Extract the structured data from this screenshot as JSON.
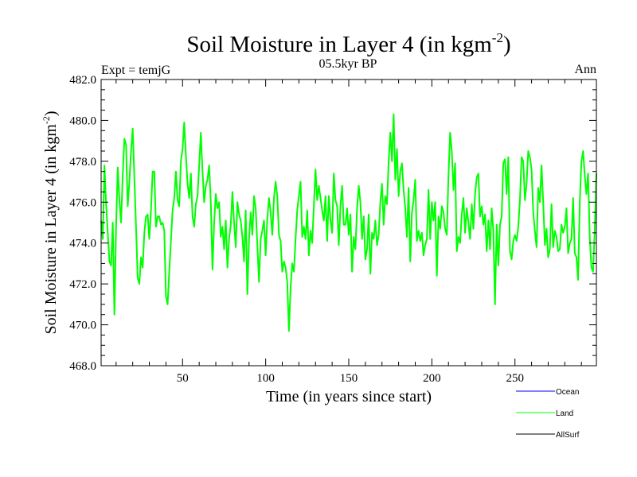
{
  "chart_data": {
    "type": "line",
    "title": "Soil Moisture in Layer 4 (in kgm",
    "title_sup": "-2",
    "title_close": ")",
    "subtitle_left": "Expt = temjG",
    "subtitle_center": "05.5kyr BP",
    "subtitle_right": "Ann",
    "xlabel": "Time (in years since start)",
    "ylabel": "Soil Moisture in Layer 4 (in kgm",
    "ylabel_sup": "-2",
    "ylabel_close": ")",
    "xlim": [
      1,
      299
    ],
    "ylim": [
      468.0,
      482.0
    ],
    "xticks": [
      50,
      100,
      150,
      200,
      250
    ],
    "xtick_labels": [
      "50",
      "100",
      "150",
      "200",
      "250"
    ],
    "yticks": [
      468,
      470,
      472,
      474,
      476,
      478,
      480,
      482
    ],
    "ytick_labels": [
      "468.0",
      "470.0",
      "472.0",
      "474.0",
      "476.0",
      "478.0",
      "480.0",
      "482.0"
    ],
    "legend": [
      {
        "name": "Ocean",
        "color": "#0000ff"
      },
      {
        "name": "Land",
        "color": "#00ff00"
      },
      {
        "name": "AllSurf",
        "color": "#000000"
      }
    ],
    "series": [
      {
        "name": "Land",
        "color": "#00ff00",
        "x": [
          1,
          2,
          3,
          4,
          5,
          6,
          7,
          8,
          9,
          10,
          11,
          12,
          13,
          14,
          15,
          16,
          17,
          18,
          19,
          20,
          21,
          22,
          23,
          24,
          25,
          26,
          27,
          28,
          29,
          30,
          31,
          32,
          33,
          34,
          35,
          36,
          37,
          38,
          39,
          40,
          41,
          42,
          43,
          44,
          45,
          46,
          47,
          48,
          49,
          50,
          51,
          52,
          53,
          54,
          55,
          56,
          57,
          58,
          59,
          60,
          61,
          62,
          63,
          64,
          65,
          66,
          67,
          68,
          69,
          70,
          71,
          72,
          73,
          74,
          75,
          76,
          77,
          78,
          79,
          80,
          81,
          82,
          83,
          84,
          85,
          86,
          87,
          88,
          89,
          90,
          91,
          92,
          93,
          94,
          95,
          96,
          97,
          98,
          99,
          100,
          101,
          102,
          103,
          104,
          105,
          106,
          107,
          108,
          109,
          110,
          111,
          112,
          113,
          114,
          115,
          116,
          117,
          118,
          119,
          120,
          121,
          122,
          123,
          124,
          125,
          126,
          127,
          128,
          129,
          130,
          131,
          132,
          133,
          134,
          135,
          136,
          137,
          138,
          139,
          140,
          141,
          142,
          143,
          144,
          145,
          146,
          147,
          148,
          149,
          150,
          151,
          152,
          153,
          154,
          155,
          156,
          157,
          158,
          159,
          160,
          161,
          162,
          163,
          164,
          165,
          166,
          167,
          168,
          169,
          170,
          171,
          172,
          173,
          174,
          175,
          176,
          177,
          178,
          179,
          180,
          181,
          182,
          183,
          184,
          185,
          186,
          187,
          188,
          189,
          190,
          191,
          192,
          193,
          194,
          195,
          196,
          197,
          198,
          199,
          200,
          201,
          202,
          203,
          204,
          205,
          206,
          207,
          208,
          209,
          210,
          211,
          212,
          213,
          214,
          215,
          216,
          217,
          218,
          219,
          220,
          221,
          222,
          223,
          224,
          225,
          226,
          227,
          228,
          229,
          230,
          231,
          232,
          233,
          234,
          235,
          236,
          237,
          238,
          239,
          240,
          241,
          242,
          243,
          244,
          245,
          246,
          247,
          248,
          249,
          250,
          251,
          252,
          253,
          254,
          255,
          256,
          257,
          258,
          259,
          260,
          261,
          262,
          263,
          264,
          265,
          266,
          267,
          268,
          269,
          270,
          271,
          272,
          273,
          274,
          275,
          276,
          277,
          278,
          279,
          280,
          281,
          282,
          283,
          284,
          285,
          286,
          287,
          288,
          289,
          290,
          291,
          292,
          293,
          294,
          295,
          296,
          297,
          298,
          299
        ],
        "values": [
          475.1,
          474.2,
          477.8,
          475.9,
          474.5,
          473.1,
          472.9,
          475.0,
          470.5,
          474.8,
          477.7,
          476.1,
          475.0,
          477.3,
          479.1,
          478.8,
          475.8,
          477.0,
          478.5,
          479.6,
          477.2,
          474.8,
          472.3,
          472.0,
          473.3,
          472.8,
          474.5,
          475.3,
          475.4,
          474.2,
          475.6,
          477.5,
          477.5,
          474.8,
          475.3,
          475.3,
          474.9,
          475.0,
          474.6,
          471.4,
          471.0,
          472.6,
          474.1,
          475.6,
          476.2,
          477.5,
          476.1,
          475.8,
          478.0,
          478.6,
          479.9,
          478.3,
          476.9,
          476.2,
          477.4,
          475.3,
          474.8,
          475.9,
          476.3,
          477.8,
          479.4,
          477.5,
          476.0,
          476.8,
          477.1,
          477.8,
          476.0,
          472.7,
          475.0,
          476.4,
          475.7,
          476.0,
          474.3,
          474.8,
          473.7,
          475.1,
          472.8,
          474.2,
          474.9,
          476.5,
          475.0,
          473.8,
          476.0,
          475.4,
          475.1,
          474.3,
          473.1,
          475.6,
          471.5,
          474.2,
          475.5,
          474.4,
          476.3,
          475.7,
          473.9,
          472.1,
          474.2,
          474.6,
          475.1,
          473.4,
          475.2,
          476.2,
          475.5,
          474.4,
          476.2,
          477.0,
          476.3,
          474.4,
          474.1,
          472.6,
          473.1,
          472.8,
          472.1,
          469.7,
          471.8,
          473.0,
          472.6,
          474.2,
          475.6,
          476.3,
          477.0,
          474.3,
          474.8,
          474.2,
          475.6,
          473.4,
          474.6,
          474.0,
          475.8,
          477.6,
          476.1,
          476.8,
          476.2,
          475.6,
          475.1,
          476.3,
          474.1,
          476.3,
          475.1,
          474.5,
          477.4,
          476.1,
          475.8,
          473.9,
          475.8,
          476.8,
          474.9,
          474.9,
          475.7,
          474.4,
          475.4,
          472.6,
          474.3,
          473.7,
          475.7,
          476.8,
          476.0,
          474.2,
          475.3,
          473.2,
          473.7,
          475.4,
          472.5,
          474.5,
          474.2,
          475.1,
          473.9,
          474.4,
          476.0,
          476.9,
          474.9,
          476.3,
          475.9,
          478.0,
          479.4,
          478.0,
          480.3,
          477.1,
          478.6,
          476.3,
          477.5,
          477.9,
          476.6,
          475.7,
          474.3,
          476.7,
          473.1,
          475.5,
          476.1,
          477.1,
          474.1,
          474.6,
          474.1,
          474.5,
          473.4,
          473.9,
          474.2,
          476.6,
          474.2,
          476.0,
          475.1,
          476.0,
          472.4,
          475.3,
          474.7,
          475.8,
          475.5,
          474.7,
          474.4,
          477.3,
          479.4,
          478.5,
          476.6,
          477.9,
          473.6,
          474.3,
          474.0,
          475.4,
          476.2,
          474.5,
          475.7,
          475.0,
          474.2,
          475.9,
          474.7,
          476.4,
          477.2,
          477.4,
          475.3,
          475.8,
          474.9,
          475.4,
          473.6,
          475.1,
          473.7,
          475.7,
          474.6,
          471.0,
          474.9,
          472.9,
          474.9,
          475.3,
          477.9,
          478.1,
          476.4,
          478.2,
          473.6,
          473.2,
          474.1,
          474.4,
          474.1,
          474.8,
          476.1,
          478.2,
          478.0,
          476.1,
          476.9,
          478.5,
          478.2,
          477.6,
          475.5,
          474.6,
          473.8,
          476.7,
          476.0,
          477.8,
          476.0,
          473.9,
          474.7,
          473.3,
          473.7,
          475.9,
          473.8,
          474.6,
          474.3,
          473.6,
          473.7,
          474.9,
          474.5,
          474.8,
          475.7,
          473.5,
          474.0,
          474.2,
          476.2,
          473.5,
          473.3,
          472.2,
          476.0,
          478.0,
          478.5,
          477.3,
          476.4,
          477.4,
          474.3,
          472.8,
          472.6,
          474.6,
          477.4
        ]
      }
    ]
  }
}
